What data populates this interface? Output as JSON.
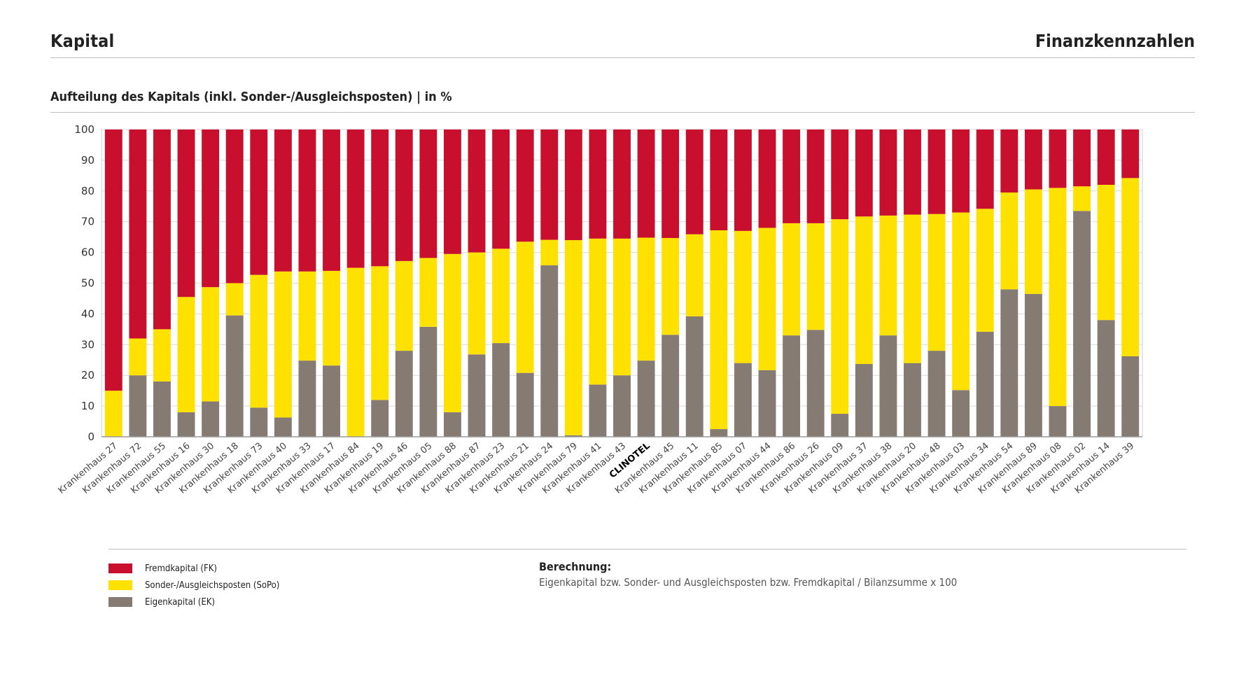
{
  "header": {
    "title_left": "Kapital",
    "title_right": "Finanzkennzahlen"
  },
  "chart_data": {
    "type": "bar",
    "stacked": true,
    "title": "Aufteilung des Kapitals (inkl. Sonder-/Ausgleichsposten)  |  in %",
    "xlabel": "",
    "ylabel": "",
    "ylim": [
      0,
      100
    ],
    "yticks": [
      0,
      10,
      20,
      30,
      40,
      50,
      60,
      70,
      80,
      90,
      100
    ],
    "grid": true,
    "highlight_category": "CLINOTEL",
    "categories": [
      "Krankenhaus 27",
      "Krankenhaus 72",
      "Krankenhaus 55",
      "Krankenhaus 16",
      "Krankenhaus 30",
      "Krankenhaus 18",
      "Krankenhaus 73",
      "Krankenhaus 40",
      "Krankenhaus 33",
      "Krankenhaus 17",
      "Krankenhaus 84",
      "Krankenhaus 19",
      "Krankenhaus 46",
      "Krankenhaus 05",
      "Krankenhaus 88",
      "Krankenhaus 87",
      "Krankenhaus 23",
      "Krankenhaus 21",
      "Krankenhaus 24",
      "Krankenhaus 79",
      "Krankenhaus 41",
      "Krankenhaus 43",
      "CLINOTEL",
      "Krankenhaus 45",
      "Krankenhaus 11",
      "Krankenhaus 85",
      "Krankenhaus 07",
      "Krankenhaus 44",
      "Krankenhaus 86",
      "Krankenhaus 26",
      "Krankenhaus 09",
      "Krankenhaus 37",
      "Krankenhaus 38",
      "Krankenhaus 20",
      "Krankenhaus 48",
      "Krankenhaus 03",
      "Krankenhaus 34",
      "Krankenhaus 54",
      "Krankenhaus 89",
      "Krankenhaus 08",
      "Krankenhaus 02",
      "Krankenhaus 14",
      "Krankenhaus 39"
    ],
    "series": [
      {
        "name": "Eigenkapital (EK)",
        "color": "#857b73",
        "values": [
          0,
          20,
          18,
          8,
          11.5,
          39.5,
          9.5,
          6.3,
          24.8,
          23.2,
          0,
          12,
          28,
          35.8,
          8,
          26.8,
          30.5,
          20.8,
          55.8,
          0.5,
          17,
          20,
          24.8,
          33.2,
          39.2,
          2.5,
          24,
          21.7,
          33,
          34.8,
          7.5,
          23.7,
          33,
          24,
          28,
          15.2,
          34.2,
          48,
          46.5,
          10,
          73.5,
          38,
          26.2
        ]
      },
      {
        "name": "Sonder-/Ausgleichsposten (SoPo)",
        "color": "#ffe100",
        "values": [
          15,
          12,
          17,
          37.5,
          37.2,
          10.5,
          43.2,
          47.5,
          29,
          30.8,
          55,
          43.5,
          29.2,
          22.4,
          51.5,
          33.2,
          30.7,
          42.7,
          8.3,
          63.5,
          47.5,
          44.5,
          40,
          31.5,
          26.7,
          64.7,
          43,
          46.3,
          36.5,
          34.7,
          63.3,
          48,
          39,
          48.3,
          44.5,
          57.8,
          40,
          31.5,
          34,
          71,
          8,
          44,
          58
        ]
      },
      {
        "name": "Fremdkapital (FK)",
        "color": "#c8102e",
        "values": [
          85,
          68,
          65,
          54.5,
          51.3,
          50,
          47.3,
          46.2,
          46.2,
          46,
          45,
          44.5,
          42.8,
          41.8,
          40.5,
          40,
          38.8,
          36.5,
          35.9,
          36,
          35.5,
          35.5,
          35.2,
          35.3,
          34.1,
          32.8,
          33,
          32,
          30.5,
          30.5,
          29.2,
          28.3,
          28,
          27.7,
          27.5,
          27,
          25.8,
          20.5,
          19.5,
          19,
          18.5,
          18,
          15.8
        ]
      }
    ]
  },
  "legend": [
    {
      "label": "Fremdkapital (FK)",
      "color": "#c8102e"
    },
    {
      "label": "Sonder-/Ausgleichsposten (SoPo)",
      "color": "#ffe100"
    },
    {
      "label": "Eigenkapital (EK)",
      "color": "#857b73"
    }
  ],
  "calculation": {
    "title": "Berechnung:",
    "text": "Eigenkapital bzw. Sonder- und Ausgleichsposten bzw. Fremdkapital / Bilanzsumme x 100"
  }
}
